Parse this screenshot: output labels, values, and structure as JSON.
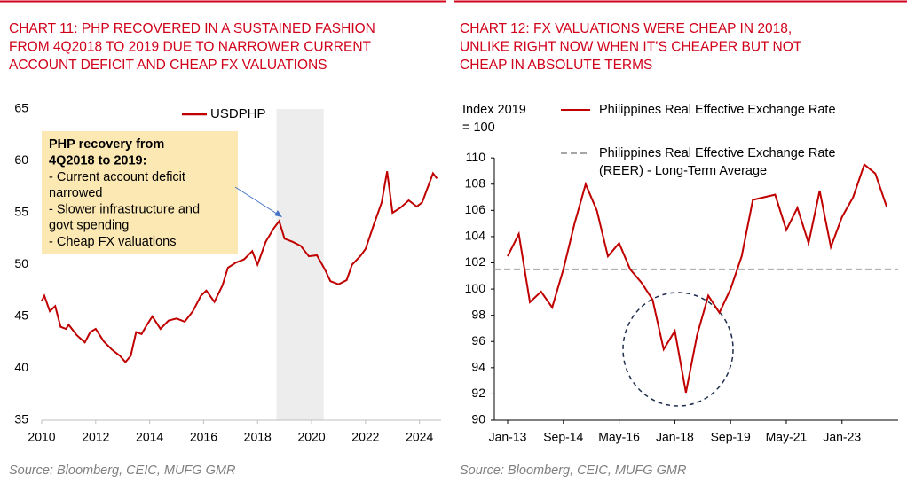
{
  "chart_data": [
    {
      "type": "line",
      "title": [
        "CHART 11: PHP RECOVERED IN A SUSTAINED FASHION",
        "FROM 4Q2018 TO 2019 DUE TO NARROWER CURRENT",
        "ACCOUNT DEFICIT AND CHEAP FX VALUATIONS"
      ],
      "x": [
        2010.0,
        2010.1,
        2010.3,
        2010.5,
        2010.7,
        2010.9,
        2011.0,
        2011.3,
        2011.6,
        2011.8,
        2012.0,
        2012.3,
        2012.6,
        2012.9,
        2013.1,
        2013.3,
        2013.5,
        2013.7,
        2013.9,
        2014.1,
        2014.4,
        2014.7,
        2015.0,
        2015.3,
        2015.6,
        2015.9,
        2016.1,
        2016.4,
        2016.7,
        2016.9,
        2017.2,
        2017.5,
        2017.8,
        2018.0,
        2018.3,
        2018.6,
        2018.8,
        2019.0,
        2019.3,
        2019.6,
        2019.9,
        2020.2,
        2020.5,
        2020.7,
        2021.0,
        2021.3,
        2021.5,
        2021.8,
        2022.0,
        2022.3,
        2022.6,
        2022.8,
        2023.0,
        2023.3,
        2023.6,
        2023.9,
        2024.1,
        2024.3,
        2024.5,
        2024.65
      ],
      "series": [
        {
          "name": "USDPHP",
          "color": "#c00000",
          "values": [
            46.5,
            47,
            45.5,
            46,
            44,
            43.8,
            44.2,
            43.2,
            42.5,
            43.5,
            43.8,
            42.6,
            41.8,
            41.2,
            40.6,
            41.2,
            43.5,
            43.3,
            44.2,
            45,
            43.8,
            44.6,
            44.8,
            44.5,
            45.5,
            47,
            47.5,
            46.4,
            48,
            49.7,
            50.2,
            50.5,
            51.3,
            50,
            52.2,
            53.5,
            54.2,
            52.5,
            52.2,
            51.8,
            50.8,
            50.9,
            49.5,
            48.4,
            48.1,
            48.5,
            50,
            50.8,
            51.5,
            53.8,
            56,
            59,
            55,
            55.5,
            56.2,
            55.6,
            56,
            57.4,
            58.8,
            58.3
          ]
        }
      ],
      "xlim": [
        2010,
        2024.8
      ],
      "xticks": [
        2010,
        2012,
        2014,
        2016,
        2018,
        2020,
        2022,
        2024
      ],
      "ylim": [
        35,
        65
      ],
      "yticks": [
        35,
        40,
        45,
        50,
        55,
        60,
        65
      ],
      "shade": [
        2018.7,
        2020.45
      ],
      "annotation": {
        "heading": [
          "PHP recovery from",
          "4Q2018 to 2019:"
        ],
        "lines": [
          "- Current account deficit",
          "narrowed",
          "- Slower infrastructure and",
          "govt spending",
          "- Cheap FX valuations"
        ]
      },
      "source": "Source: Bloomberg, CEIC, MUFG GMR"
    },
    {
      "type": "line",
      "title": [
        "CHART 12: FX VALUATIONS WERE CHEAP IN 2018,",
        "UNLIKE RIGHT NOW WHEN IT’S CHEAPER BUT NOT",
        "CHEAP IN ABSOLUTE TERMS"
      ],
      "y_label": [
        "Index 2019",
        "= 100"
      ],
      "categories": [
        "Jan-13",
        null,
        null,
        null,
        null,
        "Sep-14",
        null,
        null,
        null,
        null,
        "May-16",
        null,
        null,
        null,
        null,
        "Jan-18",
        null,
        null,
        null,
        null,
        "Sep-19",
        null,
        null,
        null,
        null,
        "May-21",
        null,
        null,
        null,
        null,
        "Jan-23",
        null,
        null,
        null,
        null
      ],
      "series": [
        {
          "name": "Philippines Real Effective Exchange Rate",
          "color": "#c00000",
          "values": [
            102.5,
            104.2,
            99,
            99.8,
            98.6,
            101.5,
            105,
            108,
            106,
            102.5,
            103.5,
            101.5,
            100.5,
            99.2,
            95.4,
            96.8,
            92.1,
            96.5,
            99.5,
            98.2,
            100,
            102.5,
            106.8,
            107,
            107.2,
            104.5,
            106.2,
            103.5,
            107.5,
            103.2,
            105.5,
            107,
            109.5,
            108.8,
            106.3
          ]
        }
      ],
      "reference": {
        "name": "Philippines Real Effective Exchange Rate (REER) - Long-Term Average",
        "color": "#a6a6a6",
        "value": 101.5
      },
      "ylim": [
        90,
        114
      ],
      "yticks": [
        90,
        92,
        94,
        96,
        98,
        100,
        102,
        104,
        106,
        108,
        110
      ],
      "source": "Source: Bloomberg, CEIC, MUFG GMR"
    }
  ]
}
